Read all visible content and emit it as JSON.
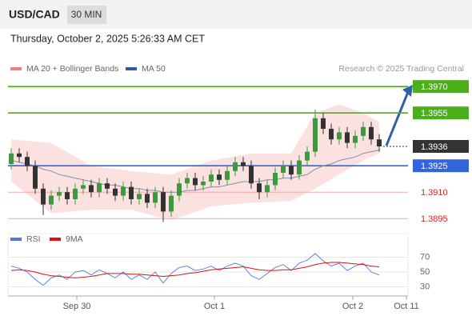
{
  "header": {
    "symbol": "USD/CAD",
    "interval": "30 MIN",
    "datetime": "Thursday, October 2, 2025 5:26:33 AM CET"
  },
  "chart_data": {
    "type": "candlestick",
    "legend": [
      {
        "name": "MA 20 + Bollinger Bands",
        "color": "#f08080"
      },
      {
        "name": "MA 50",
        "color": "#2d5a9e"
      }
    ],
    "credit": "Research © 2025 Trading Central",
    "ylim": [
      1.3891,
      1.3976
    ],
    "xlim": [
      -1,
      50
    ],
    "xticks": [
      {
        "value": 8.2,
        "label": "Sep 30"
      },
      {
        "value": 25.4,
        "label": "Oct 1"
      },
      {
        "value": 42.7,
        "label": "Oct 2"
      },
      {
        "value": 49.4,
        "label": "Oct 11"
      }
    ],
    "up_color": "#3c9a3c",
    "down_color": "#333333",
    "candles": {
      "open": [
        1.3926,
        1.3932,
        1.393,
        1.3925,
        1.3912,
        1.3903,
        1.3908,
        1.391,
        1.3906,
        1.3912,
        1.3914,
        1.391,
        1.3915,
        1.3912,
        1.3908,
        1.3913,
        1.3906,
        1.3909,
        1.3904,
        1.391,
        1.3899,
        1.3908,
        1.3915,
        1.3918,
        1.3914,
        1.3916,
        1.392,
        1.3917,
        1.3922,
        1.3927,
        1.3925,
        1.3915,
        1.391,
        1.3914,
        1.3921,
        1.3925,
        1.392,
        1.3928,
        1.3933,
        1.3952,
        1.3946,
        1.394,
        1.3944,
        1.3938,
        1.3942,
        1.3947,
        1.394
      ],
      "high": [
        1.3935,
        1.3935,
        1.3933,
        1.3928,
        1.3915,
        1.3911,
        1.3913,
        1.3913,
        1.3915,
        1.3917,
        1.3917,
        1.3918,
        1.3918,
        1.3915,
        1.3916,
        1.3916,
        1.3912,
        1.3912,
        1.3913,
        1.3913,
        1.3911,
        1.3918,
        1.3921,
        1.3921,
        1.3919,
        1.3923,
        1.3923,
        1.3925,
        1.393,
        1.393,
        1.3928,
        1.3918,
        1.3917,
        1.3924,
        1.3928,
        1.3928,
        1.3931,
        1.3936,
        1.3957,
        1.3955,
        1.3949,
        1.3947,
        1.3947,
        1.3945,
        1.395,
        1.395,
        1.3943
      ],
      "low": [
        1.3923,
        1.3927,
        1.3922,
        1.3909,
        1.3897,
        1.39,
        1.3905,
        1.3903,
        1.3903,
        1.3909,
        1.3907,
        1.3907,
        1.3909,
        1.3905,
        1.3905,
        1.3903,
        1.3903,
        1.3901,
        1.3901,
        1.3893,
        1.3896,
        1.3905,
        1.3912,
        1.3911,
        1.3911,
        1.3913,
        1.3914,
        1.3914,
        1.3919,
        1.3922,
        1.3912,
        1.3906,
        1.3907,
        1.3911,
        1.3918,
        1.3917,
        1.3917,
        1.3925,
        1.393,
        1.3943,
        1.3937,
        1.3937,
        1.3935,
        1.3935,
        1.3939,
        1.3937,
        1.3933
      ],
      "close": [
        1.3932,
        1.393,
        1.3925,
        1.3912,
        1.3903,
        1.3908,
        1.391,
        1.3906,
        1.3912,
        1.3914,
        1.391,
        1.3915,
        1.3912,
        1.3908,
        1.3913,
        1.3906,
        1.3909,
        1.3904,
        1.391,
        1.3899,
        1.3908,
        1.3915,
        1.3918,
        1.3914,
        1.3916,
        1.392,
        1.3917,
        1.3922,
        1.3927,
        1.3925,
        1.3915,
        1.391,
        1.3914,
        1.3921,
        1.3925,
        1.392,
        1.3928,
        1.3933,
        1.3952,
        1.3946,
        1.394,
        1.3944,
        1.3938,
        1.3942,
        1.3947,
        1.394,
        1.3936
      ]
    },
    "ma50": [
      1.3928,
      1.3927,
      1.3926,
      1.3925,
      1.3923,
      1.3922,
      1.392,
      1.3919,
      1.3918,
      1.3917,
      1.3916,
      1.3915,
      1.3914,
      1.3914,
      1.3913,
      1.3912,
      1.3912,
      1.3911,
      1.3911,
      1.391,
      1.391,
      1.391,
      1.3911,
      1.3911,
      1.3912,
      1.3913,
      1.3913,
      1.3914,
      1.3915,
      1.3916,
      1.3916,
      1.3916,
      1.3917,
      1.3917,
      1.3918,
      1.3918,
      1.3919,
      1.392,
      1.3923,
      1.3925,
      1.3926,
      1.3928,
      1.3929,
      1.393,
      1.3932,
      1.3933,
      1.3934
    ],
    "band_index": [
      0,
      5,
      10,
      15,
      20,
      25,
      30,
      35,
      38,
      41,
      44,
      46
    ],
    "band_upper": [
      1.394,
      1.3938,
      1.3925,
      1.3922,
      1.392,
      1.3928,
      1.3932,
      1.3932,
      1.3955,
      1.396,
      1.3955,
      1.395
    ],
    "band_lower": [
      1.3916,
      1.3898,
      1.39,
      1.39,
      1.3894,
      1.3902,
      1.3904,
      1.3905,
      1.3912,
      1.392,
      1.3928,
      1.3932
    ],
    "levels": [
      {
        "value": 1.397,
        "label": "1.3970",
        "color": "#4caf1a",
        "style": "box"
      },
      {
        "value": 1.3955,
        "label": "1.3955",
        "color": "#4caf1a",
        "style": "box"
      },
      {
        "value": 1.3936,
        "label": "1.3936",
        "color": "#333333",
        "style": "current"
      },
      {
        "value": 1.3925,
        "label": "1.3925",
        "color": "#3366dd",
        "style": "box"
      },
      {
        "value": 1.391,
        "label": "1.3910",
        "color": "#dd2222",
        "style": "text"
      },
      {
        "value": 1.3895,
        "label": "1.3895",
        "color": "#dd2222",
        "style": "text"
      }
    ],
    "rsi": {
      "legend": [
        {
          "name": "RSI",
          "color": "#5577dd"
        },
        {
          "name": "9MA",
          "color": "#dd1111"
        }
      ],
      "ylim": [
        10,
        90
      ],
      "yticks": [
        70,
        50,
        30
      ],
      "rsi": [
        58,
        55,
        50,
        40,
        32,
        42,
        46,
        40,
        50,
        52,
        46,
        53,
        48,
        42,
        50,
        40,
        46,
        40,
        50,
        35,
        48,
        56,
        58,
        52,
        54,
        58,
        52,
        58,
        62,
        58,
        45,
        40,
        48,
        56,
        60,
        52,
        62,
        66,
        75,
        65,
        58,
        62,
        52,
        58,
        62,
        50,
        46
      ],
      "ma": [
        52,
        53,
        52,
        50,
        47,
        45,
        44,
        43,
        42,
        43,
        44,
        46,
        48,
        48,
        48,
        47,
        47,
        46,
        45,
        44,
        45,
        46,
        48,
        49,
        51,
        53,
        54,
        55,
        56,
        57,
        55,
        53,
        52,
        52,
        53,
        53,
        55,
        57,
        60,
        62,
        63,
        63,
        62,
        61,
        60,
        58,
        57
      ]
    }
  }
}
